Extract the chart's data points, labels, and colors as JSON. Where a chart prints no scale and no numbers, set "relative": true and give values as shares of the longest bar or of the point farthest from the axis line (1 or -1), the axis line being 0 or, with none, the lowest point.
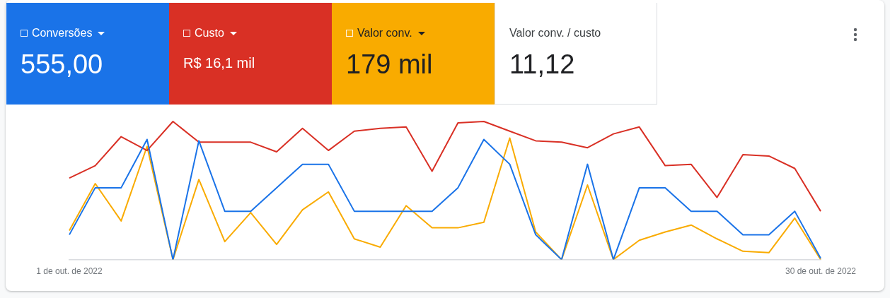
{
  "chart_data": {
    "type": "line",
    "relative": true,
    "legend": "top left",
    "marker": "none",
    "line_style": "solid",
    "annotations": [
      "555,00",
      "R$ 16,1 mil",
      "179 mil",
      "Valor conv. / custo",
      "11,12"
    ],
    "categories": [
      "1 de out. de 2022",
      null,
      null,
      null,
      null,
      null,
      null,
      null,
      null,
      null,
      null,
      null,
      null,
      null,
      null,
      null,
      null,
      null,
      null,
      null,
      null,
      null,
      null,
      null,
      null,
      null,
      null,
      null,
      null,
      "30 de out. de 2022"
    ],
    "series": [
      {
        "name": "Conversões",
        "color": "#1a73e8",
        "values": [
          0.18,
          0.52,
          0.52,
          0.87,
          0,
          0.86,
          0.35,
          0.35,
          0.52,
          0.69,
          0.69,
          0.35,
          0.35,
          0.35,
          0.35,
          0.52,
          0.87,
          0.69,
          0.18,
          0,
          0.69,
          0,
          0.52,
          0.52,
          0.35,
          0.35,
          0.18,
          0.18,
          0.35,
          0.01
        ]
      },
      {
        "name": "Custo",
        "color": "#d93025",
        "values": [
          0.59,
          0.68,
          0.89,
          0.79,
          1,
          0.85,
          0.85,
          0.85,
          0.78,
          0.95,
          0.79,
          0.93,
          0.95,
          0.96,
          0.64,
          0.99,
          1,
          0.93,
          0.86,
          0.85,
          0.81,
          0.91,
          0.96,
          0.68,
          0.69,
          0.45,
          0.76,
          0.75,
          0.66,
          0.35
        ]
      },
      {
        "name": "Valor conv.",
        "color": "#f9ab00",
        "values": [
          0.21,
          0.55,
          0.28,
          0.82,
          0,
          0.58,
          0.13,
          0.34,
          0.11,
          0.36,
          0.49,
          0.15,
          0.09,
          0.39,
          0.23,
          0.23,
          0.27,
          0.88,
          0.2,
          0,
          0.54,
          0,
          0.14,
          0.2,
          0.25,
          0.15,
          0.06,
          0.05,
          0.3,
          0
        ]
      }
    ]
  }
}
